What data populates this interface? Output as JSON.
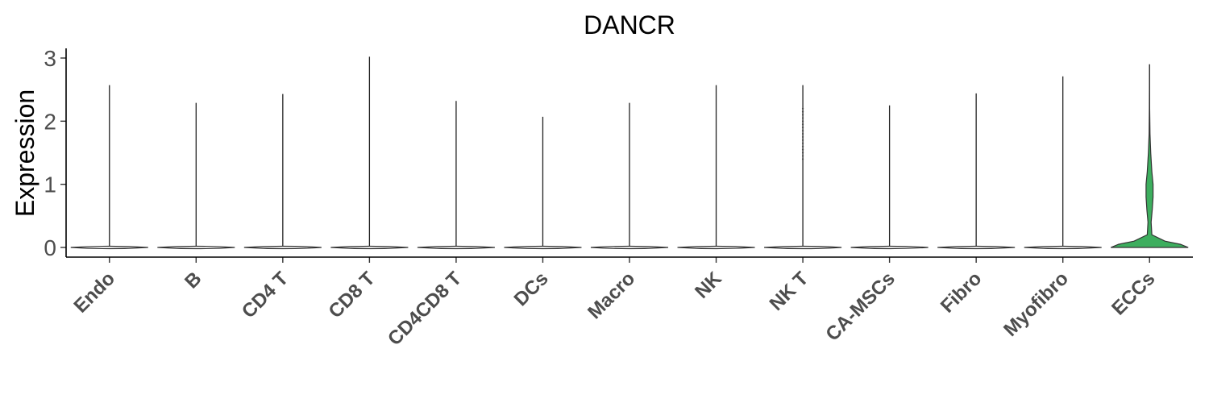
{
  "chart_data": {
    "type": "violin",
    "title": "DANCR",
    "xlabel": "",
    "ylabel": "Expression",
    "ylim": [
      -0.15,
      3.2
    ],
    "yticks": [
      0,
      1,
      2,
      3
    ],
    "grid": false,
    "legend": "none",
    "colors": {
      "violin_fill": "#ffffff",
      "highlight_fill": "#3dae5e",
      "axis": "#000000",
      "tick_text": "#4d4d4d"
    },
    "categories": [
      "Endo",
      "B",
      "CD4 T",
      "CD8 T",
      "CD4CD8 T",
      "DCs",
      "Macro",
      "NK",
      "NK T",
      "CA-MSCs",
      "Fibro",
      "Myofibro",
      "ECCs"
    ],
    "series": [
      {
        "values": {
          "min": 0,
          "max": 2.57
        }
      },
      {
        "values": {
          "min": 0,
          "max": 2.29
        }
      },
      {
        "values": {
          "min": 0,
          "max": 2.43
        }
      },
      {
        "values": {
          "min": 0,
          "max": 3.02
        }
      },
      {
        "values": {
          "min": 0,
          "max": 2.32
        }
      },
      {
        "values": {
          "min": 0,
          "max": 2.07
        }
      },
      {
        "values": {
          "min": 0,
          "max": 2.29
        }
      },
      {
        "values": {
          "min": 0,
          "max": 2.57
        }
      },
      {
        "values": {
          "min": 0,
          "max": 2.57
        },
        "points": [
          1.4,
          1.5,
          1.6,
          1.7,
          1.8,
          2.0,
          2.2
        ]
      },
      {
        "values": {
          "min": 0,
          "max": 2.25
        }
      },
      {
        "values": {
          "min": 0,
          "max": 2.44
        }
      },
      {
        "values": {
          "min": 0,
          "max": 2.71
        }
      },
      {
        "values": {
          "min": 0,
          "max": 2.9
        },
        "highlight": true,
        "density": [
          [
            0,
            1.0
          ],
          [
            0.05,
            0.8
          ],
          [
            0.1,
            0.4
          ],
          [
            0.2,
            0.06
          ],
          [
            0.4,
            0.04
          ],
          [
            0.6,
            0.07
          ],
          [
            0.8,
            0.09
          ],
          [
            1.0,
            0.09
          ],
          [
            1.2,
            0.06
          ],
          [
            1.5,
            0.03
          ],
          [
            1.8,
            0.012
          ],
          [
            2.2,
            0.004
          ],
          [
            2.9,
            0.0
          ]
        ]
      }
    ]
  }
}
